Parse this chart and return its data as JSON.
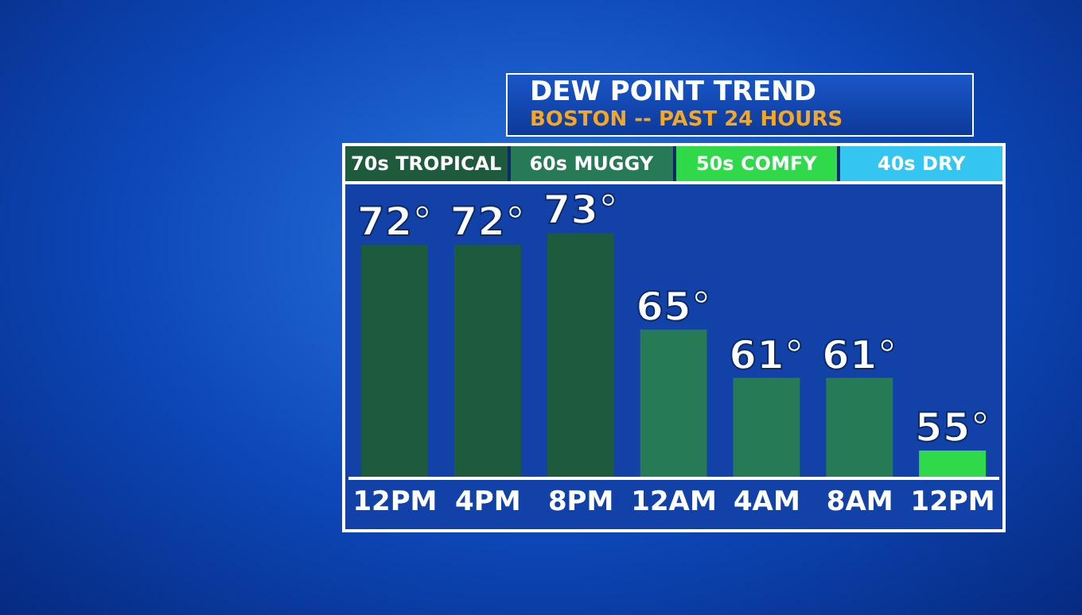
{
  "chart_data": {
    "type": "bar",
    "title": "DEW POINT TREND",
    "subtitle": "BOSTON -- PAST 24 HOURS",
    "categories": [
      "12PM",
      "4PM",
      "8PM",
      "12AM",
      "4AM",
      "8AM",
      "12PM"
    ],
    "stacked": true,
    "legend": "top",
    "tick_labels": "x",
    "ylim": [
      52.7,
      77
    ],
    "series": [
      {
        "name": "70s TROPICAL",
        "color": "#1e5a3c",
        "values": [
          72,
          72,
          73,
          null,
          null,
          null,
          null
        ],
        "value_labels": [
          "72°",
          "72°",
          "73°",
          null,
          null,
          null,
          null
        ]
      },
      {
        "name": "60s MUGGY",
        "color": "#267a56",
        "values": [
          null,
          null,
          null,
          65,
          61,
          61,
          null
        ],
        "value_labels": [
          null,
          null,
          null,
          "65°",
          "61°",
          "61°",
          null
        ]
      },
      {
        "name": "50s COMFY",
        "color": "#2fd94a",
        "values": [
          null,
          null,
          null,
          null,
          null,
          null,
          55
        ],
        "value_labels": [
          null,
          null,
          null,
          null,
          null,
          null,
          "55°"
        ]
      }
    ],
    "annotations": [
      "40s DRY"
    ]
  }
}
